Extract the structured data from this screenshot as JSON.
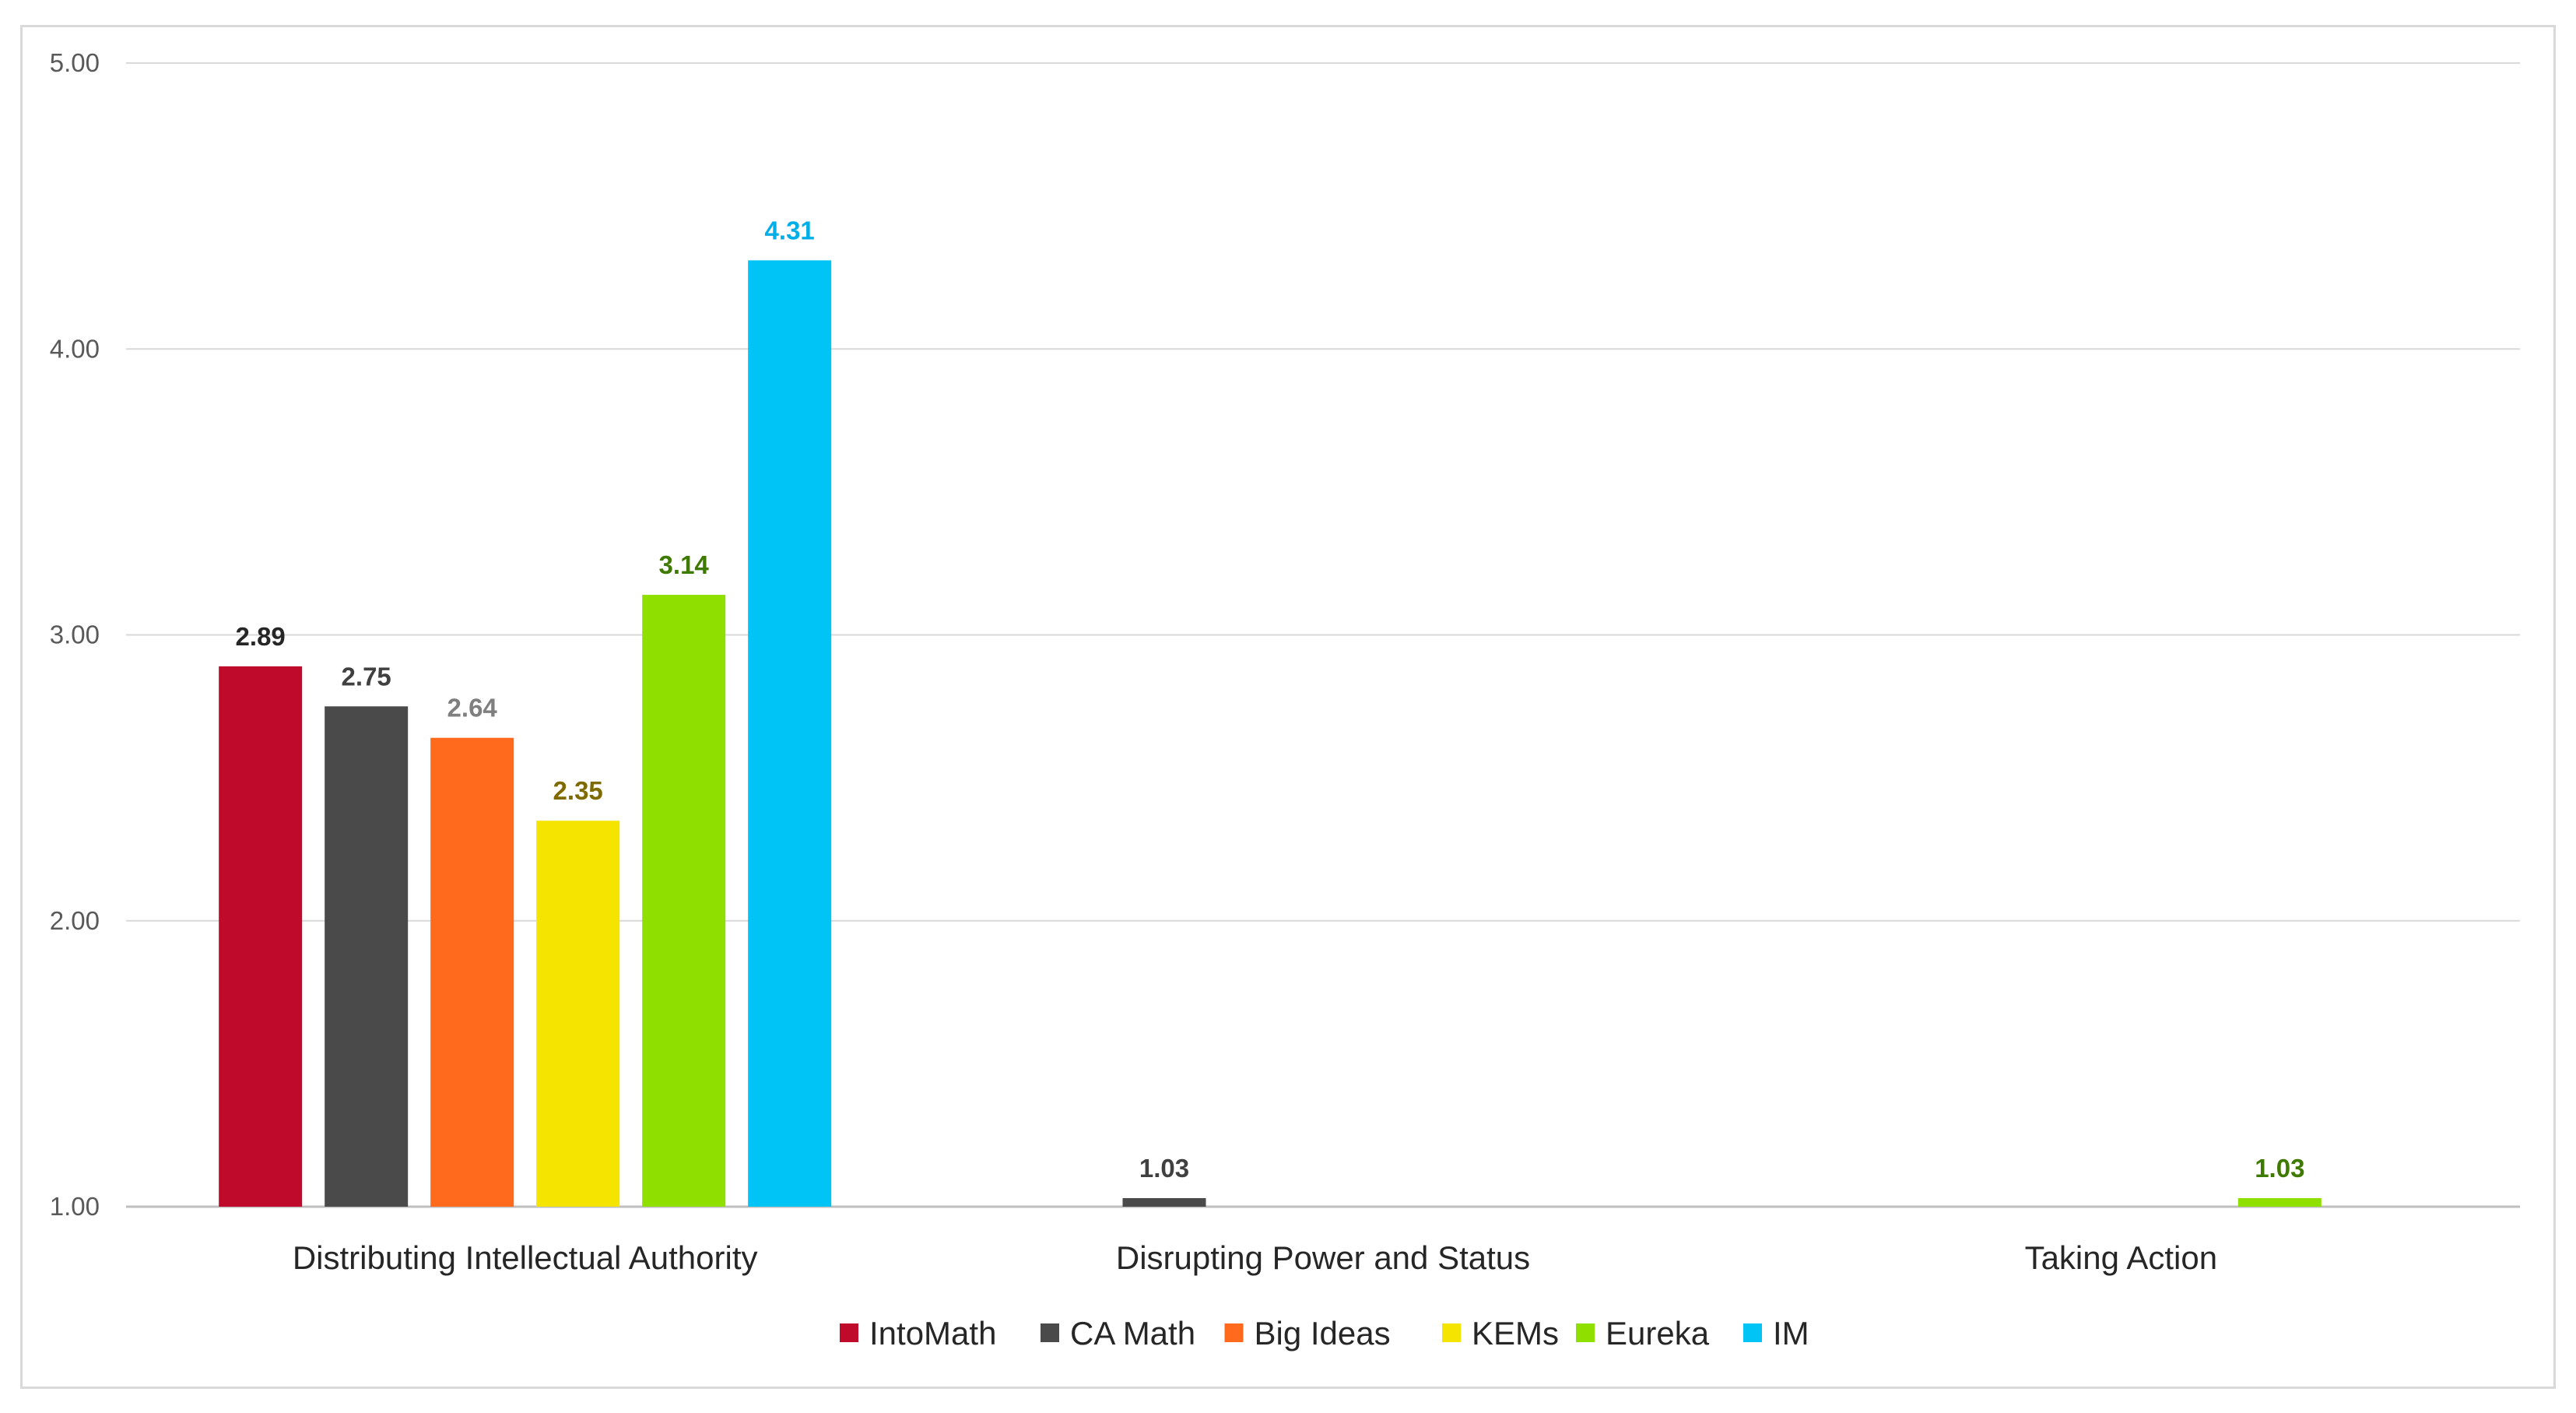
{
  "chart_data": {
    "type": "bar",
    "title": "",
    "xlabel": "",
    "ylabel": "",
    "categories": [
      "Distributing Intellectual Authority",
      "Disrupting Power and Status",
      "Taking Action"
    ],
    "ylim": [
      1.0,
      5.0
    ],
    "y_ticks": [
      "1.00",
      "2.00",
      "3.00",
      "4.00",
      "5.00"
    ],
    "y_tick_values": [
      1.0,
      2.0,
      3.0,
      4.0,
      5.0
    ],
    "grid": true,
    "legend_position": "bottom",
    "series": [
      {
        "name": "IntoMath",
        "color": "#c00a2c",
        "label_color": "#262626",
        "values": [
          2.89,
          null,
          null
        ],
        "labels": [
          "2.89",
          "",
          ""
        ]
      },
      {
        "name": "CA Math",
        "color": "#4a4a4a",
        "label_color": "#404040",
        "values": [
          2.75,
          1.03,
          null
        ],
        "labels": [
          "2.75",
          "1.03",
          ""
        ]
      },
      {
        "name": "Big Ideas",
        "color": "#ff6a1c",
        "label_color": "#7f7f7f",
        "values": [
          2.64,
          null,
          null
        ],
        "labels": [
          "2.64",
          "",
          ""
        ]
      },
      {
        "name": "KEMs",
        "color": "#f5e400",
        "label_color": "#7f6a00",
        "values": [
          2.35,
          null,
          null
        ],
        "labels": [
          "2.35",
          "",
          ""
        ]
      },
      {
        "name": "Eureka",
        "color": "#8fe000",
        "label_color": "#3f7a00",
        "values": [
          3.14,
          null,
          1.03
        ],
        "labels": [
          "3.14",
          "",
          "1.03"
        ]
      },
      {
        "name": "IM",
        "color": "#00c4f5",
        "label_color": "#00aee8",
        "values": [
          4.31,
          null,
          null
        ],
        "labels": [
          "4.31",
          "",
          ""
        ]
      }
    ]
  }
}
